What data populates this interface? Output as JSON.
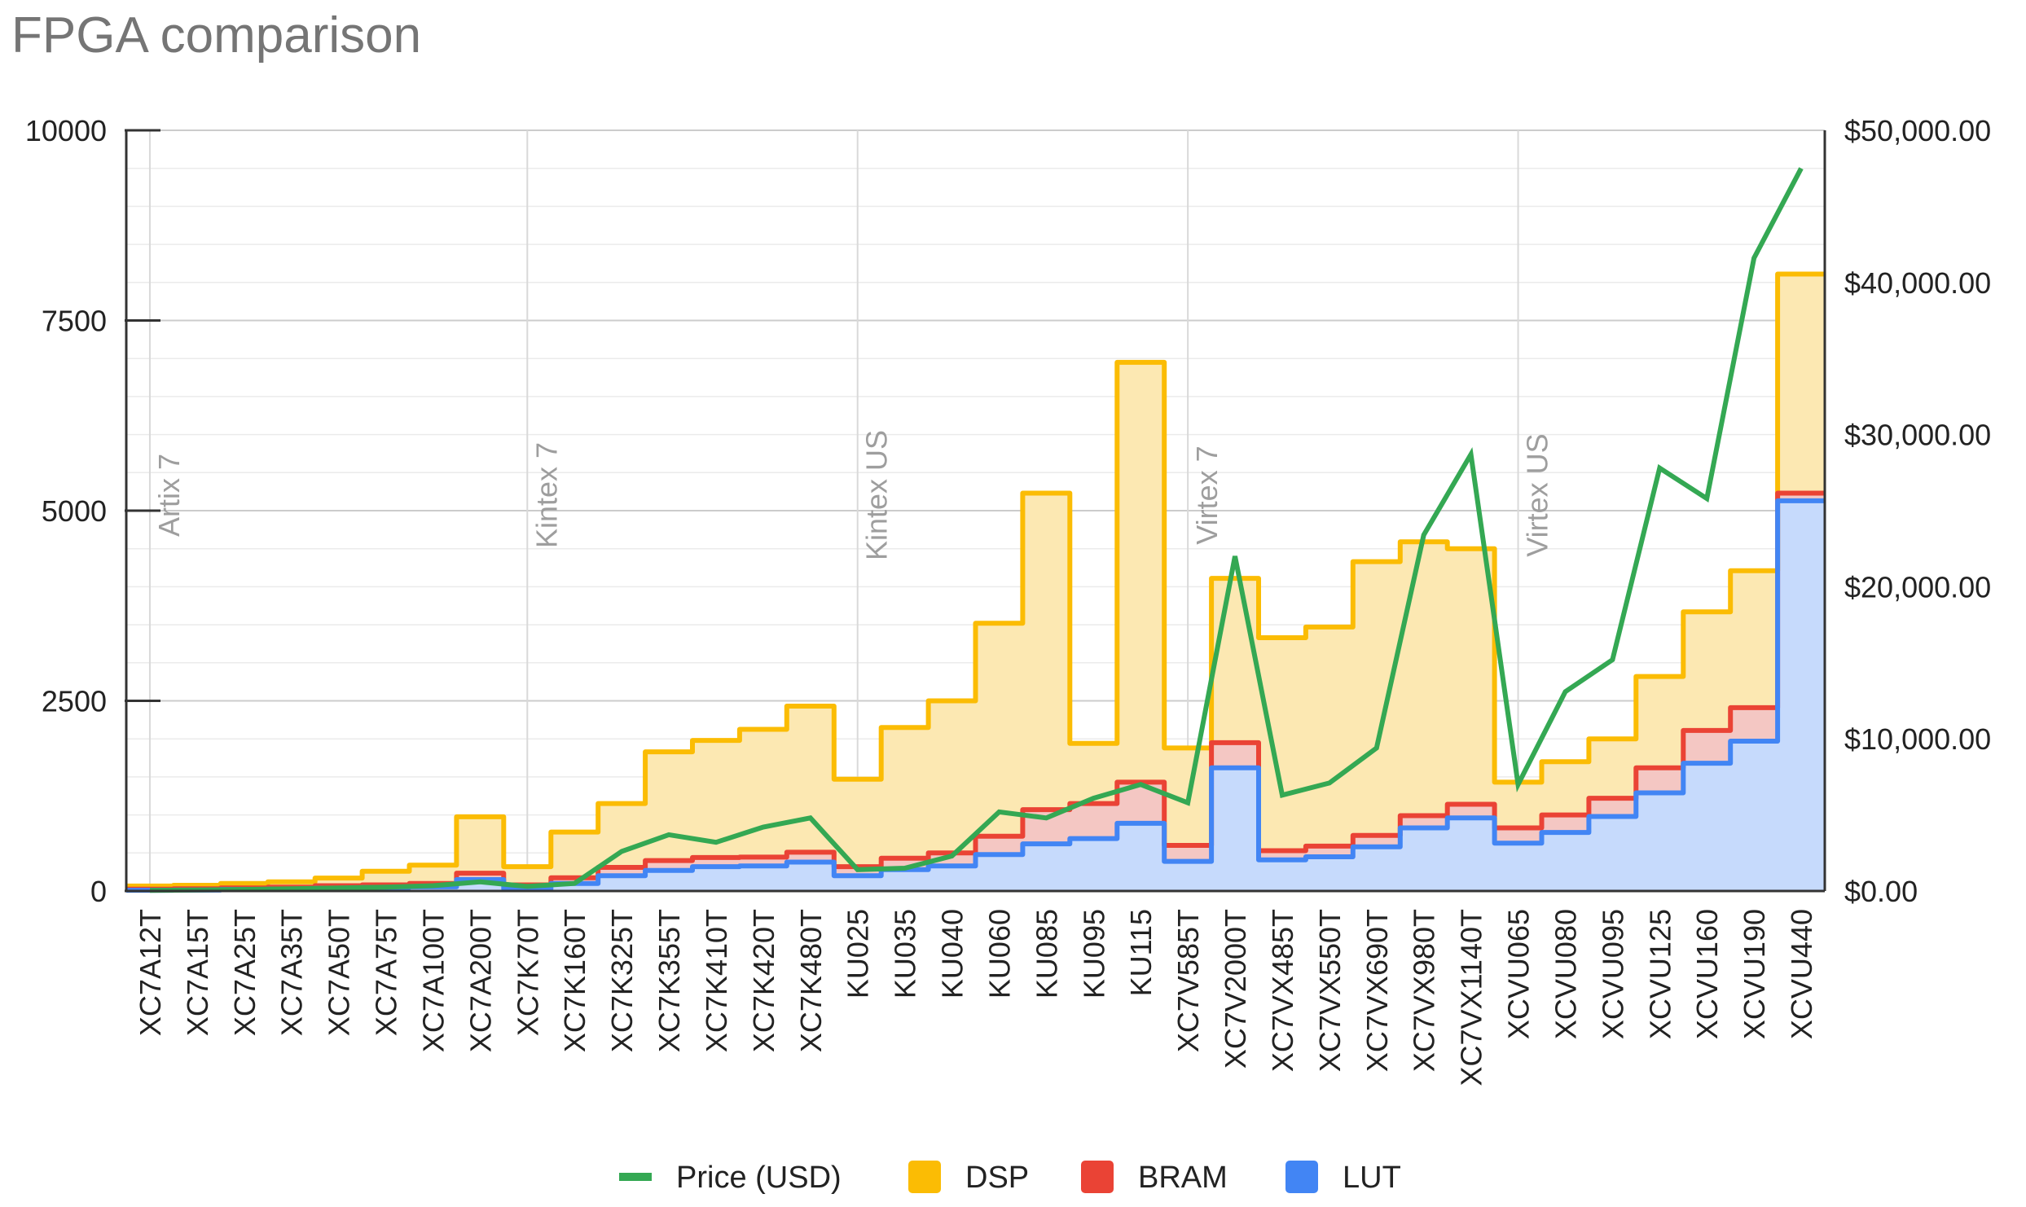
{
  "chart_data": {
    "type": "area",
    "title": "FPGA comparison",
    "categories": [
      "XC7A12T",
      "XC7A15T",
      "XC7A25T",
      "XC7A35T",
      "XC7A50T",
      "XC7A75T",
      "XC7A100T",
      "XC7A200T",
      "XC7K70T",
      "XC7K160T",
      "XC7K325T",
      "XC7K355T",
      "XC7K410T",
      "XC7K420T",
      "XC7K480T",
      "KU025",
      "KU035",
      "KU040",
      "KU060",
      "KU085",
      "KU095",
      "KU115",
      "XC7V585T",
      "XC7V2000T",
      "XC7VX485T",
      "XC7VX550T",
      "XC7VX690T",
      "XC7VX980T",
      "XC7VX1140T",
      "XCVU065",
      "XCVU080",
      "XCVU095",
      "XCVU125",
      "XCVU160",
      "XCVU190",
      "XCVU440"
    ],
    "stacked": true,
    "series": [
      {
        "name": "LUT",
        "color": "#4285f4",
        "axis": "left",
        "values": [
          10,
          12,
          20,
          25,
          35,
          45,
          55,
          150,
          25,
          100,
          200,
          270,
          320,
          330,
          380,
          200,
          280,
          330,
          480,
          620,
          690,
          890,
          390,
          1620,
          410,
          450,
          580,
          830,
          960,
          630,
          770,
          980,
          1290,
          1680,
          1970,
          5130
        ]
      },
      {
        "name": "BRAM",
        "color": "#ea4335",
        "axis": "left",
        "values": [
          15,
          18,
          20,
          25,
          35,
          35,
          45,
          85,
          55,
          75,
          110,
          130,
          120,
          115,
          130,
          120,
          150,
          170,
          240,
          450,
          460,
          540,
          210,
          330,
          120,
          140,
          150,
          160,
          180,
          200,
          230,
          240,
          330,
          430,
          440,
          100
        ]
      },
      {
        "name": "DSP",
        "color": "#fbbc04",
        "axis": "left",
        "values": [
          40,
          45,
          60,
          70,
          100,
          180,
          240,
          740,
          240,
          600,
          840,
          1430,
          1540,
          1680,
          1920,
          1150,
          1720,
          2000,
          2800,
          4160,
          790,
          5520,
          1280,
          2160,
          2800,
          2880,
          3600,
          3600,
          3360,
          600,
          700,
          780,
          1200,
          1560,
          1800,
          2880
        ]
      },
      {
        "name": "Price (USD)",
        "color": "#34a853",
        "axis": "right",
        "type": "line",
        "values": [
          40,
          70,
          100,
          150,
          200,
          250,
          350,
          600,
          300,
          500,
          2600,
          3700,
          3200,
          4200,
          4800,
          1400,
          1500,
          2300,
          5200,
          4800,
          6100,
          7000,
          5800,
          22000,
          6300,
          7100,
          9400,
          23400,
          28700,
          7000,
          13100,
          15200,
          27800,
          25800,
          41600,
          47500
        ]
      }
    ],
    "ylim": [
      0,
      10000
    ],
    "y_ticks": [
      "0",
      "2500",
      "5000",
      "7500",
      "10000"
    ],
    "y2lim": [
      0,
      50000
    ],
    "y2_ticks": [
      "$0.00",
      "$10,000.00",
      "$20,000.00",
      "$30,000.00",
      "$40,000.00",
      "$50,000.00"
    ],
    "family_labels": [
      {
        "text": "Artix 7",
        "start_index": 0
      },
      {
        "text": "Kintex 7",
        "start_index": 8
      },
      {
        "text": "Kintex US",
        "start_index": 15
      },
      {
        "text": "Virtex 7",
        "start_index": 22
      },
      {
        "text": "Virtex US",
        "start_index": 29
      }
    ],
    "legend": [
      "Price (USD)",
      "DSP",
      "BRAM",
      "LUT"
    ],
    "legend_position": "bottom",
    "grid": true
  }
}
